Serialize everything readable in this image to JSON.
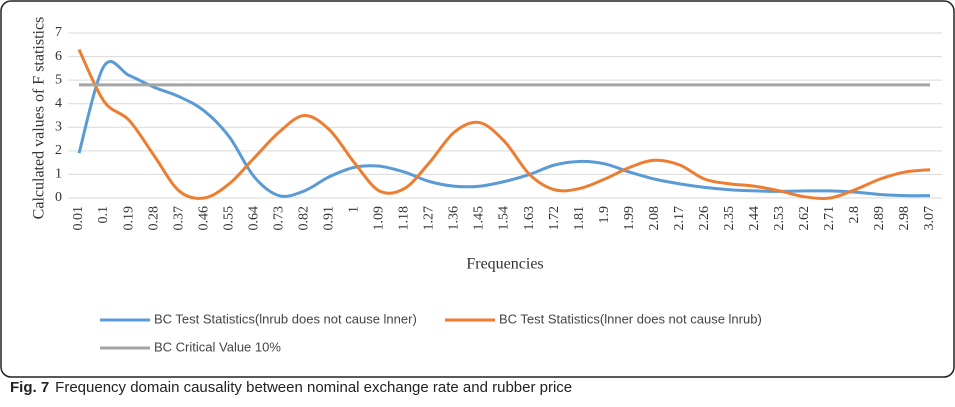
{
  "chart_data": {
    "type": "line",
    "x_label": "Frequencies",
    "y_label": "Calculated values of F statistics",
    "caption_label": "Fig. 7",
    "caption": "Frequency domain causality between nominal exchange rate and rubber price",
    "categories": [
      0.01,
      0.1,
      0.19,
      0.28,
      0.37,
      0.46,
      0.55,
      0.64,
      0.73,
      0.82,
      0.91,
      1,
      1.09,
      1.18,
      1.27,
      1.36,
      1.45,
      1.54,
      1.63,
      1.72,
      1.81,
      1.9,
      1.99,
      2.08,
      2.17,
      2.26,
      2.35,
      2.44,
      2.53,
      2.62,
      2.71,
      2.8,
      2.89,
      2.98,
      3.07
    ],
    "series": [
      {
        "name": "BC Test Statistics(lnrub does not cause lnner)",
        "color": "#5b9bd5",
        "values": [
          1.9,
          5.6,
          5.2,
          4.7,
          4.3,
          3.7,
          2.6,
          0.9,
          0.1,
          0.3,
          0.9,
          1.3,
          1.35,
          1.1,
          0.7,
          0.5,
          0.5,
          0.7,
          1.0,
          1.4,
          1.55,
          1.45,
          1.1,
          0.8,
          0.6,
          0.45,
          0.35,
          0.3,
          0.28,
          0.3,
          0.3,
          0.25,
          0.15,
          0.1,
          0.1
        ]
      },
      {
        "name": "BC Test Statistics(lnner does not cause lnrub)",
        "color": "#ed7d31",
        "values": [
          6.3,
          4.1,
          3.3,
          1.8,
          0.3,
          0.0,
          0.6,
          1.7,
          2.8,
          3.5,
          2.9,
          1.5,
          0.3,
          0.4,
          1.5,
          2.8,
          3.2,
          2.4,
          1.0,
          0.35,
          0.4,
          0.8,
          1.3,
          1.6,
          1.4,
          0.8,
          0.6,
          0.5,
          0.3,
          0.05,
          0.0,
          0.35,
          0.8,
          1.1,
          1.2
        ]
      },
      {
        "name": "BC Critical Value 10%",
        "color": "#a5a5a5",
        "values": [
          4.8,
          4.8,
          4.8,
          4.8,
          4.8,
          4.8,
          4.8,
          4.8,
          4.8,
          4.8,
          4.8,
          4.8,
          4.8,
          4.8,
          4.8,
          4.8,
          4.8,
          4.8,
          4.8,
          4.8,
          4.8,
          4.8,
          4.8,
          4.8,
          4.8,
          4.8,
          4.8,
          4.8,
          4.8,
          4.8,
          4.8,
          4.8,
          4.8,
          4.8,
          4.8
        ]
      }
    ],
    "ylim": [
      0,
      7
    ],
    "yticks": [
      0,
      1,
      2,
      3,
      4,
      5,
      6,
      7
    ],
    "grid": true
  }
}
